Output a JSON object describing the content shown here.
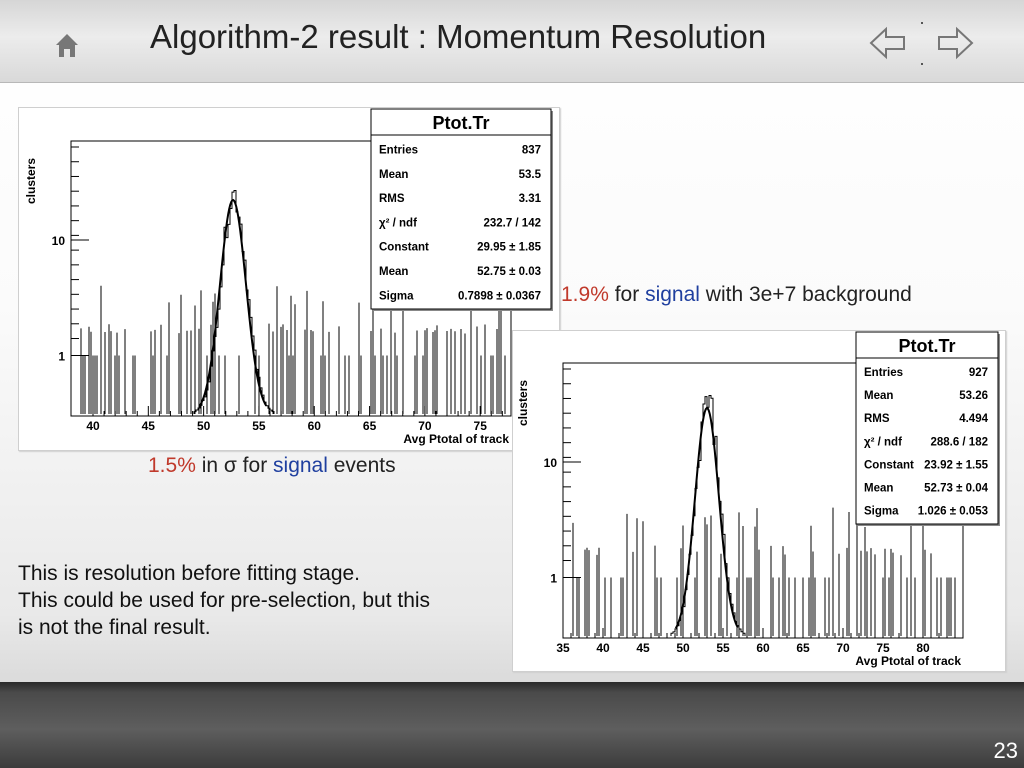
{
  "header": {
    "title": "Algorithm-2 result : Momentum Resolution"
  },
  "footer": {
    "slide_number": "23"
  },
  "captions": {
    "left": {
      "pct": "1.5%",
      "pre": " in σ for ",
      "signal": "signal",
      "post": " events"
    },
    "right": {
      "pct": "1.9%",
      "pre": " for ",
      "signal": "signal",
      "post": " with 3e+7 background"
    }
  },
  "note_lines": [
    "This is resolution before fitting stage.",
    "This could be used for pre-selection, but this",
    "is not the final result."
  ],
  "colors": {
    "red": "#c0392b",
    "blue": "#1f3f9f"
  },
  "plots": {
    "left": {
      "stats_title": "Ptot.Tr",
      "ylabel": "clusters",
      "xlabel": "Avg Ptotal of track",
      "xticks": [
        "40",
        "45",
        "50",
        "55",
        "60",
        "65",
        "70",
        "75"
      ],
      "yticks": [
        "10",
        "1"
      ],
      "stats": [
        {
          "label": "Entries",
          "value": "837"
        },
        {
          "label": "Mean",
          "value": "53.5"
        },
        {
          "label": "RMS",
          "value": "3.31"
        },
        {
          "label": "χ² / ndf",
          "value": "232.7 / 142"
        },
        {
          "label": "Constant",
          "value": "29.95 ± 1.85"
        },
        {
          "label": "Mean",
          "value": "52.75 ± 0.03"
        },
        {
          "label": "Sigma",
          "value": "0.7898 ± 0.0367"
        }
      ]
    },
    "right": {
      "stats_title": "Ptot.Tr",
      "ylabel": "clusters",
      "xlabel": "Avg Ptotal of track",
      "xticks": [
        "35",
        "40",
        "45",
        "50",
        "55",
        "60",
        "65",
        "70",
        "75",
        "80"
      ],
      "yticks": [
        "10",
        "1"
      ],
      "stats": [
        {
          "label": "Entries",
          "value": "927"
        },
        {
          "label": "Mean",
          "value": "53.26"
        },
        {
          "label": "RMS",
          "value": "4.494"
        },
        {
          "label": "χ² / ndf",
          "value": "288.6 / 182"
        },
        {
          "label": "Constant",
          "value": "23.92 ± 1.55"
        },
        {
          "label": "Mean",
          "value": "52.73 ± 0.04"
        },
        {
          "label": "Sigma",
          "value": "1.026 ± 0.053"
        }
      ]
    }
  }
}
